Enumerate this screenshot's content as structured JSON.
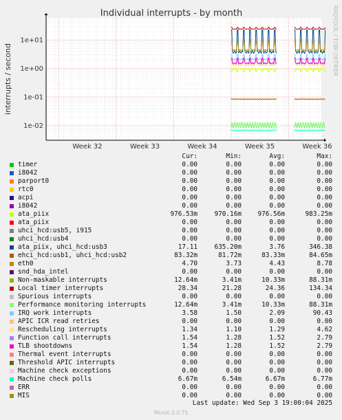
{
  "chart_data": {
    "type": "line",
    "title": "Individual interrupts - by month",
    "ylabel": "interrupts / second",
    "yscale": "log",
    "ylim": [
      0.003,
      60
    ],
    "yticks": [
      {
        "value": 10,
        "label": "1e+01"
      },
      {
        "value": 1,
        "label": "1e+00"
      },
      {
        "value": 0.1,
        "label": "1e-01"
      },
      {
        "value": 0.01,
        "label": "1e-02"
      }
    ],
    "xticks": [
      "Week 32",
      "Week 33",
      "Week 34",
      "Week 35",
      "Week 36"
    ],
    "grid": true,
    "data_segments": [
      {
        "from_week": 34.5,
        "to_week": 35.3
      },
      {
        "from_week": 35.6,
        "to_week": 36.15
      }
    ],
    "side_label": "RRDTOOL / TOBI OETIKER",
    "columns": [
      "Cur:",
      "Min:",
      "Avg:",
      "Max:"
    ],
    "series": [
      {
        "name": "timer",
        "color": "#00cc00",
        "cur": "0.00",
        "min": "0.00",
        "avg": "0.00",
        "max": "0.00"
      },
      {
        "name": "i8042",
        "color": "#0066b3",
        "cur": "0.00",
        "min": "0.00",
        "avg": "0.00",
        "max": "0.00"
      },
      {
        "name": "parport0",
        "color": "#ff8000",
        "cur": "0.00",
        "min": "0.00",
        "avg": "0.00",
        "max": "0.00"
      },
      {
        "name": "rtc0",
        "color": "#ffcc00",
        "cur": "0.00",
        "min": "0.00",
        "avg": "0.00",
        "max": "0.00"
      },
      {
        "name": "acpi",
        "color": "#330099",
        "cur": "0.00",
        "min": "0.00",
        "avg": "0.00",
        "max": "0.00"
      },
      {
        "name": "i8042",
        "color": "#990099",
        "cur": "0.00",
        "min": "0.00",
        "avg": "0.00",
        "max": "0.00"
      },
      {
        "name": "ata_piix",
        "color": "#ccff00",
        "cur": "976.53m",
        "min": "970.16m",
        "avg": "976.56m",
        "max": "983.25m"
      },
      {
        "name": "ata_piix",
        "color": "#ff0000",
        "cur": "0.00",
        "min": "0.00",
        "avg": "0.00",
        "max": "0.00"
      },
      {
        "name": "uhci_hcd:usb5, i915",
        "color": "#808080",
        "cur": "0.00",
        "min": "0.00",
        "avg": "0.00",
        "max": "0.00"
      },
      {
        "name": "uhci_hcd:usb4",
        "color": "#008f00",
        "cur": "0.00",
        "min": "0.00",
        "avg": "0.00",
        "max": "0.00"
      },
      {
        "name": "ata_piix, uhci_hcd:usb3",
        "color": "#00487d",
        "cur": "17.11",
        "min": "635.20m",
        "avg": "3.76",
        "max": "346.38"
      },
      {
        "name": "ehci_hcd:usb1, uhci_hcd:usb2",
        "color": "#b35a00",
        "cur": "83.32m",
        "min": "81.72m",
        "avg": "83.33m",
        "max": "84.65m"
      },
      {
        "name": "eth0",
        "color": "#b38f00",
        "cur": "4.70",
        "min": "3.73",
        "avg": "4.43",
        "max": "8.78"
      },
      {
        "name": "snd_hda_intel",
        "color": "#6b006b",
        "cur": "0.00",
        "min": "0.00",
        "avg": "0.00",
        "max": "0.00"
      },
      {
        "name": "Non-maskable interrupts",
        "color": "#8fb300",
        "cur": "12.64m",
        "min": "3.41m",
        "avg": "10.33m",
        "max": "88.31m"
      },
      {
        "name": "Local timer interrupts",
        "color": "#b30000",
        "cur": "28.34",
        "min": "21.28",
        "avg": "24.36",
        "max": "134.34"
      },
      {
        "name": "Spurious interrupts",
        "color": "#bebebe",
        "cur": "0.00",
        "min": "0.00",
        "avg": "0.00",
        "max": "0.00"
      },
      {
        "name": "Performance monitoring interrupts",
        "color": "#80ff80",
        "cur": "12.64m",
        "min": "3.41m",
        "avg": "10.33m",
        "max": "88.31m"
      },
      {
        "name": "IRQ work interrupts",
        "color": "#80c9ff",
        "cur": "3.58",
        "min": "1.50",
        "avg": "2.09",
        "max": "90.43"
      },
      {
        "name": "APIC ICR read retries",
        "color": "#ffc080",
        "cur": "0.00",
        "min": "0.00",
        "avg": "0.00",
        "max": "0.00"
      },
      {
        "name": "Rescheduling interrupts",
        "color": "#ffe680",
        "cur": "1.34",
        "min": "1.10",
        "avg": "1.29",
        "max": "4.62"
      },
      {
        "name": "Function call interrupts",
        "color": "#aa80ff",
        "cur": "1.54",
        "min": "1.28",
        "avg": "1.52",
        "max": "2.79"
      },
      {
        "name": "TLB shootdowns",
        "color": "#ee00cc",
        "cur": "1.54",
        "min": "1.28",
        "avg": "1.52",
        "max": "2.79"
      },
      {
        "name": "Thermal event interrupts",
        "color": "#ff8080",
        "cur": "0.00",
        "min": "0.00",
        "avg": "0.00",
        "max": "0.00"
      },
      {
        "name": "Threshold APIC interrupts",
        "color": "#666600",
        "cur": "0.00",
        "min": "0.00",
        "avg": "0.00",
        "max": "0.00"
      },
      {
        "name": "Machine check exceptions",
        "color": "#ffbfff",
        "cur": "0.00",
        "min": "0.00",
        "avg": "0.00",
        "max": "0.00"
      },
      {
        "name": "Machine check polls",
        "color": "#00ffcc",
        "cur": "6.67m",
        "min": "6.54m",
        "avg": "6.67m",
        "max": "6.77m"
      },
      {
        "name": "ERR",
        "color": "#cc6699",
        "cur": "0.00",
        "min": "0.00",
        "avg": "0.00",
        "max": "0.00"
      },
      {
        "name": "MIS",
        "color": "#999900",
        "cur": "0.00",
        "min": "0.00",
        "avg": "0.00",
        "max": "0.00"
      }
    ]
  },
  "footer": {
    "last_update": "Last update: Wed Sep  3 19:00:04 2025",
    "munin_version": "Munin 2.0.75"
  }
}
